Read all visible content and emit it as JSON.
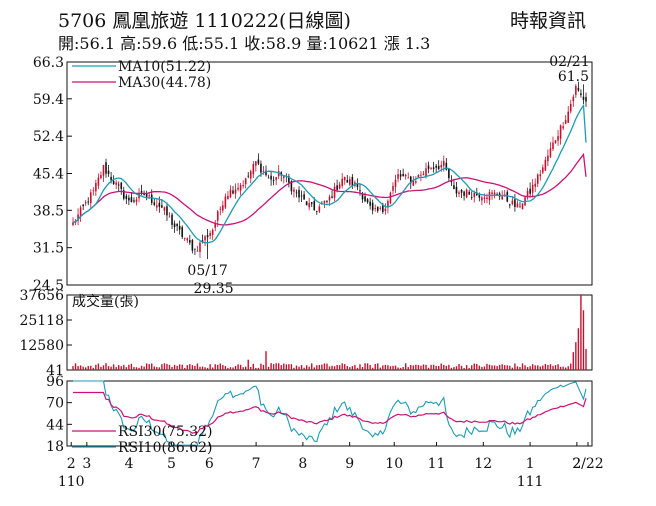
{
  "header": {
    "title": "5706  鳳凰旅遊 1110222(日線圖)",
    "source": "時報資訊",
    "ohlc": "開:56.1 高:59.6 低:55.1 收:58.9 量:10621 漲 1.3"
  },
  "colors": {
    "up": "#c8102e",
    "down": "#111111",
    "ma10": "#1e9bb5",
    "ma30": "#cc1177",
    "volume": "#c8102e",
    "axis": "#111111"
  },
  "chart_data": [
    {
      "type": "candlestick",
      "panel": "price",
      "ylim": [
        24.5,
        66.3
      ],
      "yticks": [
        "66.3",
        "59.4",
        "52.4",
        "45.4",
        "38.5",
        "31.5",
        "24.5"
      ],
      "ytick_values": [
        66.3,
        59.4,
        52.4,
        45.4,
        38.5,
        31.5,
        24.5
      ],
      "legend": [
        {
          "name": "MA10(51.22)",
          "color": "#1e9bb5"
        },
        {
          "name": "MA30(44.78)",
          "color": "#cc1177"
        }
      ],
      "annotations": [
        {
          "label": "05/17",
          "value_label": "29.35",
          "value": 29.35
        },
        {
          "label": "02/21",
          "value_label": "61.5",
          "value": 61.5
        }
      ],
      "close_anchor_days": [
        0,
        8,
        12,
        22,
        28,
        35,
        40,
        48,
        55,
        60,
        68,
        72,
        78,
        82,
        88,
        95,
        100,
        106,
        112,
        118,
        122,
        128,
        134,
        140,
        146,
        150,
        160,
        168,
        175,
        180,
        185,
        190,
        195,
        198,
        200,
        202
      ],
      "close_anchor_values": [
        36,
        42,
        46.5,
        40,
        41.5,
        39,
        35.5,
        31,
        35,
        41.5,
        44,
        47.5,
        44,
        45.5,
        41.5,
        38.5,
        40,
        44.5,
        43,
        38,
        38.5,
        45,
        44,
        46.5,
        47,
        42,
        41.5,
        41.5,
        39,
        42,
        46.5,
        52,
        57,
        61.5,
        60,
        58.9
      ],
      "ma10_last": 51.22,
      "ma30_last": 44.78
    },
    {
      "type": "bar",
      "panel": "volume",
      "series": [
        {
          "name": "成交量(張)",
          "color": "#c8102e"
        }
      ],
      "ylim": [
        41,
        37656
      ],
      "yticks": [
        "37656",
        "25118",
        "12580",
        "41"
      ],
      "ytick_values": [
        37656,
        25118,
        12580,
        41
      ],
      "last": 10621
    },
    {
      "type": "line",
      "panel": "rsi",
      "ylim": [
        18,
        96
      ],
      "yticks": [
        "96",
        "70",
        "44",
        "18"
      ],
      "ytick_values": [
        96,
        70,
        44,
        18
      ],
      "series": [
        {
          "name": "RSI30(75.32)",
          "color": "#cc1177"
        },
        {
          "name": "RSI10(86.62)",
          "color": "#1e9bb5"
        }
      ],
      "rsi10_last": 86.62,
      "rsi30_last": 75.32
    }
  ],
  "x_axis": {
    "days": 203,
    "ticks": [
      {
        "label": "2",
        "day": 1
      },
      {
        "label": "3",
        "day": 8
      },
      {
        "label": "4",
        "day": 27
      },
      {
        "label": "5",
        "day": 46
      },
      {
        "label": "6",
        "day": 63
      },
      {
        "label": "7",
        "day": 84
      },
      {
        "label": "8",
        "day": 105
      },
      {
        "label": "9",
        "day": 126
      },
      {
        "label": "10",
        "day": 146
      },
      {
        "label": "11",
        "day": 165
      },
      {
        "label": "12",
        "day": 186
      },
      {
        "label": "1",
        "day": 207
      },
      {
        "label": "2",
        "day": 228
      },
      {
        "label": "2/22",
        "day": 233
      }
    ],
    "year_labels": [
      {
        "label": "110",
        "day": 1
      },
      {
        "label": "111",
        "day": 207
      }
    ]
  }
}
